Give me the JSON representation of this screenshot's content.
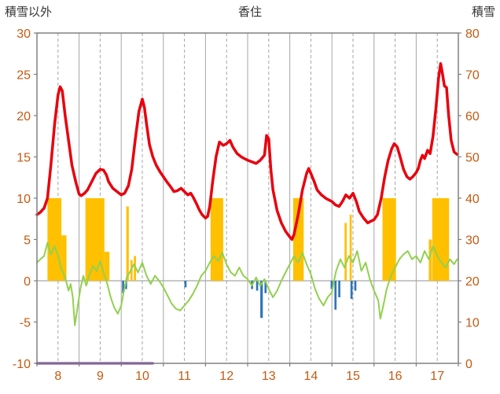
{
  "header": {
    "left_label": "積雪以外",
    "title": "香住",
    "right_label": "積雪"
  },
  "chart_data": {
    "type": "line",
    "title": "香住",
    "left_axis": {
      "label": "積雪以外",
      "min": -10,
      "max": 30,
      "tick_step": 5,
      "ticks": [
        -10,
        -5,
        0,
        5,
        10,
        15,
        20,
        25,
        30
      ]
    },
    "right_axis": {
      "label": "積雪",
      "min": 0,
      "max": 80,
      "tick_step": 10,
      "ticks": [
        0,
        10,
        20,
        30,
        40,
        50,
        60,
        70,
        80
      ]
    },
    "x_axis": {
      "domain": [
        8,
        18
      ],
      "labels": [
        "8",
        "9",
        "10",
        "11",
        "12",
        "13",
        "14",
        "15",
        "16",
        "17"
      ],
      "solid_gridlines": [
        9,
        10,
        11,
        12,
        13,
        14,
        15,
        16,
        17
      ],
      "dashed_gridlines": [
        8.5,
        9.5,
        10.5,
        11.5,
        12.5,
        13.5,
        14.5,
        15.5,
        16.5,
        17.5
      ]
    },
    "grid": {
      "border_color": "#808080",
      "grid_color": "#a6a6a6",
      "zero_line": 0,
      "tick_color": "#808080",
      "label_color": "#c55a11",
      "label_size": 16
    },
    "series": [
      {
        "name": "orange-bars",
        "kind": "bar",
        "color": "#ffc000",
        "bars": [
          [
            8.25,
            0.33,
            10
          ],
          [
            8.58,
            0.12,
            5.5
          ],
          [
            9.15,
            0.45,
            10
          ],
          [
            9.6,
            0.12,
            3.5
          ],
          [
            10.12,
            0.06,
            9
          ],
          [
            10.22,
            0.05,
            2.5
          ],
          [
            10.3,
            0.05,
            3
          ],
          [
            12.12,
            0.3,
            10
          ],
          [
            14.08,
            0.25,
            10
          ],
          [
            15.3,
            0.05,
            7
          ],
          [
            15.42,
            0.05,
            8
          ],
          [
            16.2,
            0.32,
            10
          ],
          [
            17.3,
            0.07,
            5
          ],
          [
            17.38,
            0.4,
            10
          ]
        ]
      },
      {
        "name": "blue-bars",
        "kind": "bar",
        "color": "#2e75b6",
        "bars": [
          [
            10.02,
            0.05,
            -1.5
          ],
          [
            10.09,
            0.05,
            -1
          ],
          [
            11.5,
            0.05,
            -0.8
          ],
          [
            13.08,
            0.05,
            -1
          ],
          [
            13.2,
            0.05,
            -1.2
          ],
          [
            13.3,
            0.06,
            -4.5
          ],
          [
            13.4,
            0.05,
            -1.5
          ],
          [
            14.97,
            0.05,
            -1
          ],
          [
            15.06,
            0.05,
            -3.5
          ],
          [
            15.15,
            0.05,
            -2
          ],
          [
            15.44,
            0.05,
            -2.2
          ],
          [
            15.53,
            0.05,
            -1.2
          ]
        ]
      },
      {
        "name": "snow-depth-purple",
        "kind": "line",
        "color": "#7030a0",
        "width": 3,
        "points": [
          [
            8,
            -10
          ],
          [
            10.75,
            -10
          ]
        ]
      },
      {
        "name": "green-line",
        "kind": "line",
        "color": "#92d050",
        "width": 2,
        "points": [
          [
            8.0,
            2.2
          ],
          [
            8.08,
            2.6
          ],
          [
            8.17,
            3
          ],
          [
            8.25,
            4.6
          ],
          [
            8.33,
            3.2
          ],
          [
            8.42,
            4.2
          ],
          [
            8.5,
            3
          ],
          [
            8.58,
            1.4
          ],
          [
            8.67,
            0.4
          ],
          [
            8.75,
            -1.2
          ],
          [
            8.8,
            -0.4
          ],
          [
            8.85,
            -2
          ],
          [
            8.9,
            -5.4
          ],
          [
            8.97,
            -3
          ],
          [
            9.03,
            -1
          ],
          [
            9.1,
            0.6
          ],
          [
            9.17,
            -0.6
          ],
          [
            9.25,
            0.8
          ],
          [
            9.33,
            1.8
          ],
          [
            9.42,
            1.2
          ],
          [
            9.5,
            2.4
          ],
          [
            9.58,
            1
          ],
          [
            9.67,
            -0.4
          ],
          [
            9.75,
            -2
          ],
          [
            9.83,
            -3.2
          ],
          [
            9.92,
            -4
          ],
          [
            10.0,
            -3
          ],
          [
            10.05,
            -1.6
          ],
          [
            10.13,
            0.4
          ],
          [
            10.2,
            1
          ],
          [
            10.3,
            2
          ],
          [
            10.4,
            1
          ],
          [
            10.5,
            2.2
          ],
          [
            10.6,
            0.6
          ],
          [
            10.7,
            -0.4
          ],
          [
            10.8,
            0.6
          ],
          [
            10.9,
            0
          ],
          [
            11.0,
            -0.8
          ],
          [
            11.1,
            -1.8
          ],
          [
            11.2,
            -2.8
          ],
          [
            11.3,
            -3.4
          ],
          [
            11.4,
            -3.6
          ],
          [
            11.5,
            -3
          ],
          [
            11.6,
            -2.4
          ],
          [
            11.7,
            -1.6
          ],
          [
            11.8,
            -0.6
          ],
          [
            11.9,
            0.6
          ],
          [
            12.0,
            1.2
          ],
          [
            12.1,
            2.2
          ],
          [
            12.2,
            3
          ],
          [
            12.3,
            2.4
          ],
          [
            12.4,
            3.4
          ],
          [
            12.5,
            2
          ],
          [
            12.6,
            1
          ],
          [
            12.7,
            0.6
          ],
          [
            12.8,
            1.6
          ],
          [
            12.9,
            0.6
          ],
          [
            13.0,
            0.2
          ],
          [
            13.1,
            -0.6
          ],
          [
            13.2,
            0.4
          ],
          [
            13.3,
            -0.6
          ],
          [
            13.4,
            0.2
          ],
          [
            13.5,
            -1
          ],
          [
            13.6,
            -2
          ],
          [
            13.7,
            -1.2
          ],
          [
            13.8,
            0
          ],
          [
            13.9,
            1
          ],
          [
            14.0,
            2
          ],
          [
            14.1,
            3
          ],
          [
            14.2,
            2.2
          ],
          [
            14.3,
            3.4
          ],
          [
            14.4,
            2
          ],
          [
            14.5,
            0.8
          ],
          [
            14.6,
            -1
          ],
          [
            14.7,
            -2.2
          ],
          [
            14.8,
            -3
          ],
          [
            14.9,
            -2
          ],
          [
            15.0,
            -1.4
          ],
          [
            15.05,
            0
          ],
          [
            15.1,
            1.2
          ],
          [
            15.2,
            2.6
          ],
          [
            15.3,
            1.6
          ],
          [
            15.4,
            3
          ],
          [
            15.5,
            2.2
          ],
          [
            15.6,
            3.6
          ],
          [
            15.7,
            1.2
          ],
          [
            15.8,
            2.2
          ],
          [
            15.9,
            0.2
          ],
          [
            16.0,
            -1.2
          ],
          [
            16.1,
            -2.4
          ],
          [
            16.15,
            -4.6
          ],
          [
            16.22,
            -3
          ],
          [
            16.3,
            -1
          ],
          [
            16.4,
            0.6
          ],
          [
            16.5,
            1.6
          ],
          [
            16.6,
            2.6
          ],
          [
            16.7,
            3.2
          ],
          [
            16.8,
            3.6
          ],
          [
            16.9,
            2.6
          ],
          [
            17.0,
            3
          ],
          [
            17.1,
            2.2
          ],
          [
            17.2,
            3.6
          ],
          [
            17.3,
            2.6
          ],
          [
            17.4,
            4.2
          ],
          [
            17.5,
            3
          ],
          [
            17.6,
            2.2
          ],
          [
            17.7,
            1.6
          ],
          [
            17.8,
            2.6
          ],
          [
            17.9,
            2
          ],
          [
            17.97,
            2.6
          ]
        ]
      },
      {
        "name": "temperature-red",
        "kind": "line",
        "color": "#e8000d",
        "width": 3.5,
        "points": [
          [
            8.0,
            8
          ],
          [
            8.08,
            8.3
          ],
          [
            8.17,
            8.8
          ],
          [
            8.25,
            10
          ],
          [
            8.33,
            14
          ],
          [
            8.42,
            19
          ],
          [
            8.5,
            22.5
          ],
          [
            8.55,
            23.5
          ],
          [
            8.6,
            23
          ],
          [
            8.67,
            20
          ],
          [
            8.75,
            17
          ],
          [
            8.83,
            14
          ],
          [
            8.92,
            12
          ],
          [
            9.0,
            10.5
          ],
          [
            9.05,
            10.3
          ],
          [
            9.13,
            10.6
          ],
          [
            9.2,
            11
          ],
          [
            9.3,
            12
          ],
          [
            9.4,
            13
          ],
          [
            9.5,
            13.5
          ],
          [
            9.58,
            13.4
          ],
          [
            9.65,
            12.8
          ],
          [
            9.7,
            12
          ],
          [
            9.8,
            11.2
          ],
          [
            9.9,
            10.8
          ],
          [
            10.0,
            10.4
          ],
          [
            10.08,
            10.6
          ],
          [
            10.17,
            11.5
          ],
          [
            10.25,
            13.5
          ],
          [
            10.33,
            17
          ],
          [
            10.42,
            20.5
          ],
          [
            10.5,
            22
          ],
          [
            10.55,
            21
          ],
          [
            10.6,
            19
          ],
          [
            10.67,
            16.5
          ],
          [
            10.75,
            15
          ],
          [
            10.83,
            14
          ],
          [
            10.92,
            13.2
          ],
          [
            11.0,
            12.6
          ],
          [
            11.08,
            12
          ],
          [
            11.17,
            11.4
          ],
          [
            11.25,
            10.8
          ],
          [
            11.33,
            10.9
          ],
          [
            11.42,
            11.2
          ],
          [
            11.5,
            10.8
          ],
          [
            11.58,
            10.4
          ],
          [
            11.65,
            10.6
          ],
          [
            11.7,
            10.2
          ],
          [
            11.78,
            9.4
          ],
          [
            11.85,
            8.6
          ],
          [
            11.92,
            8
          ],
          [
            12.0,
            7.6
          ],
          [
            12.05,
            7.8
          ],
          [
            12.1,
            9
          ],
          [
            12.17,
            12
          ],
          [
            12.25,
            15
          ],
          [
            12.33,
            16.8
          ],
          [
            12.42,
            16.4
          ],
          [
            12.5,
            16.6
          ],
          [
            12.58,
            17
          ],
          [
            12.65,
            16.2
          ],
          [
            12.75,
            15.4
          ],
          [
            12.85,
            15
          ],
          [
            12.92,
            14.8
          ],
          [
            13.0,
            14.6
          ],
          [
            13.1,
            14.4
          ],
          [
            13.2,
            14.2
          ],
          [
            13.3,
            14.6
          ],
          [
            13.4,
            15.2
          ],
          [
            13.45,
            17.6
          ],
          [
            13.5,
            17.2
          ],
          [
            13.55,
            13.5
          ],
          [
            13.6,
            11
          ],
          [
            13.7,
            8.5
          ],
          [
            13.8,
            7
          ],
          [
            13.9,
            6
          ],
          [
            14.0,
            5.3
          ],
          [
            14.05,
            5
          ],
          [
            14.1,
            5.6
          ],
          [
            14.2,
            8
          ],
          [
            14.3,
            11
          ],
          [
            14.4,
            13
          ],
          [
            14.45,
            13.6
          ],
          [
            14.5,
            13
          ],
          [
            14.58,
            12
          ],
          [
            14.65,
            11
          ],
          [
            14.75,
            10.4
          ],
          [
            14.85,
            10
          ],
          [
            14.92,
            9.8
          ],
          [
            15.0,
            9.6
          ],
          [
            15.08,
            9.2
          ],
          [
            15.17,
            9
          ],
          [
            15.25,
            9.6
          ],
          [
            15.33,
            10.4
          ],
          [
            15.42,
            10
          ],
          [
            15.5,
            10.6
          ],
          [
            15.58,
            9.6
          ],
          [
            15.65,
            8.4
          ],
          [
            15.75,
            7.6
          ],
          [
            15.85,
            7
          ],
          [
            15.92,
            7.2
          ],
          [
            16.0,
            7.4
          ],
          [
            16.08,
            8
          ],
          [
            16.17,
            10
          ],
          [
            16.25,
            12.5
          ],
          [
            16.33,
            14.5
          ],
          [
            16.42,
            16
          ],
          [
            16.48,
            16.6
          ],
          [
            16.55,
            16.2
          ],
          [
            16.62,
            15
          ],
          [
            16.7,
            13.5
          ],
          [
            16.78,
            12.6
          ],
          [
            16.85,
            12.3
          ],
          [
            16.92,
            12.6
          ],
          [
            17.0,
            13.1
          ],
          [
            17.05,
            13.6
          ],
          [
            17.1,
            14.6
          ],
          [
            17.15,
            15.2
          ],
          [
            17.2,
            14.8
          ],
          [
            17.27,
            15.8
          ],
          [
            17.33,
            15.4
          ],
          [
            17.4,
            17.5
          ],
          [
            17.47,
            21
          ],
          [
            17.53,
            24.5
          ],
          [
            17.58,
            26.3
          ],
          [
            17.62,
            25.2
          ],
          [
            17.67,
            23.6
          ],
          [
            17.72,
            23.4
          ],
          [
            17.77,
            20
          ],
          [
            17.83,
            17
          ],
          [
            17.9,
            15.6
          ],
          [
            17.97,
            15.3
          ]
        ]
      }
    ]
  }
}
